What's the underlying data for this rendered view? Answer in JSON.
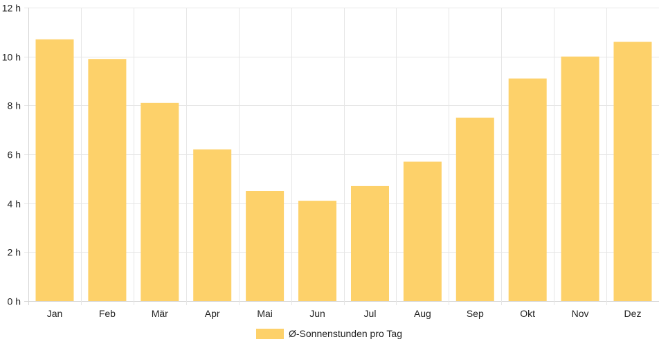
{
  "chart_data": {
    "type": "bar",
    "categories": [
      "Jan",
      "Feb",
      "Mär",
      "Apr",
      "Mai",
      "Jun",
      "Jul",
      "Aug",
      "Sep",
      "Okt",
      "Nov",
      "Dez"
    ],
    "series": [
      {
        "name": "Ø-Sonnenstunden pro Tag",
        "color": "#fdd16a",
        "values": [
          10.7,
          9.9,
          8.1,
          6.2,
          4.5,
          4.1,
          4.7,
          5.7,
          7.5,
          9.1,
          10.0,
          10.6
        ]
      }
    ],
    "ylim": [
      0,
      12
    ],
    "yticks": [
      0,
      2,
      4,
      6,
      8,
      10,
      12
    ],
    "ytick_suffix": " h",
    "grid": true,
    "legend_position": "bottom"
  }
}
